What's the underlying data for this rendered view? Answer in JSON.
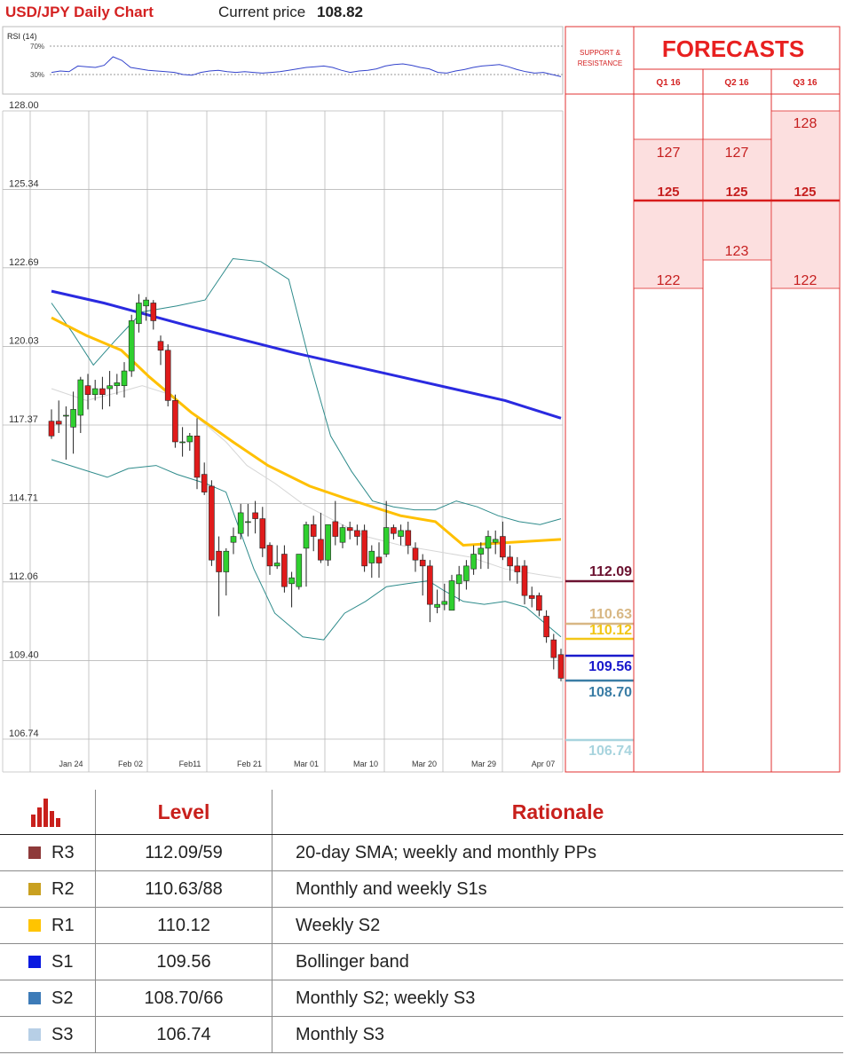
{
  "header": {
    "title": "USD/JPY Daily Chart",
    "price_label": "Current price",
    "price_value": "108.82"
  },
  "rsi": {
    "label": "RSI (14)",
    "levels": [
      "70%",
      "30%"
    ],
    "values": [
      33,
      35,
      34,
      42,
      41,
      40,
      43,
      55,
      50,
      40,
      38,
      36,
      35,
      34,
      33,
      30,
      29,
      33,
      35,
      36,
      34,
      33,
      34,
      33,
      32,
      33,
      34,
      36,
      38,
      40,
      41,
      42,
      40,
      36,
      33,
      35,
      36,
      38,
      42,
      44,
      45,
      43,
      40,
      38,
      33,
      32,
      35,
      37,
      40,
      42,
      43,
      44,
      41,
      37,
      34,
      32,
      33,
      30,
      27
    ]
  },
  "price_axis": {
    "ticks": [
      "128.00",
      "125.34",
      "122.69",
      "120.03",
      "117.37",
      "114.71",
      "112.06",
      "109.40",
      "106.74"
    ]
  },
  "date_axis": {
    "ticks": [
      "Jan 24",
      "Feb 02",
      "Feb11",
      "Feb 21",
      "Mar 01",
      "Mar 10",
      "Mar 20",
      "Mar 29",
      "Apr 07"
    ]
  },
  "chart_data": {
    "type": "candlestick",
    "ylim": [
      106.74,
      128.0
    ],
    "candles": [
      [
        117.5,
        117.9,
        116.9,
        117.0
      ],
      [
        117.5,
        118.2,
        117.1,
        117.4
      ],
      [
        117.7,
        118.0,
        116.2,
        117.7
      ],
      [
        117.3,
        118.5,
        116.4,
        117.9
      ],
      [
        117.7,
        119.0,
        117.1,
        118.9
      ],
      [
        118.7,
        119.1,
        117.9,
        118.4
      ],
      [
        118.4,
        118.9,
        118.2,
        118.6
      ],
      [
        118.6,
        119.0,
        117.9,
        118.4
      ],
      [
        118.6,
        119.2,
        118.0,
        118.7
      ],
      [
        118.7,
        119.1,
        118.4,
        118.8
      ],
      [
        118.7,
        119.5,
        118.3,
        119.2
      ],
      [
        119.2,
        121.1,
        119.0,
        120.9
      ],
      [
        120.8,
        121.8,
        120.5,
        121.5
      ],
      [
        121.4,
        121.7,
        120.9,
        121.6
      ],
      [
        121.5,
        121.6,
        120.6,
        120.9
      ],
      [
        120.2,
        120.4,
        119.4,
        119.9
      ],
      [
        119.9,
        120.1,
        118.0,
        118.2
      ],
      [
        118.2,
        118.4,
        116.6,
        116.8
      ],
      [
        116.8,
        117.3,
        116.3,
        116.8
      ],
      [
        116.8,
        117.1,
        116.5,
        117.0
      ],
      [
        117.0,
        117.6,
        115.2,
        115.6
      ],
      [
        115.7,
        116.1,
        115.0,
        115.1
      ],
      [
        115.3,
        115.5,
        112.6,
        112.8
      ],
      [
        113.1,
        113.6,
        110.9,
        112.4
      ],
      [
        112.4,
        113.2,
        111.6,
        113.1
      ],
      [
        113.4,
        113.9,
        113.0,
        113.6
      ],
      [
        113.7,
        114.7,
        113.5,
        114.4
      ],
      [
        114.1,
        114.7,
        113.6,
        114.1
      ],
      [
        114.4,
        114.8,
        113.7,
        114.2
      ],
      [
        114.2,
        114.6,
        112.9,
        113.2
      ],
      [
        113.3,
        113.4,
        112.3,
        112.6
      ],
      [
        112.6,
        113.3,
        112.5,
        112.7
      ],
      [
        113.0,
        113.3,
        111.7,
        111.9
      ],
      [
        112.0,
        112.4,
        111.2,
        112.2
      ],
      [
        111.9,
        113.0,
        111.8,
        113.0
      ],
      [
        113.2,
        114.1,
        111.9,
        114.0
      ],
      [
        114.0,
        114.3,
        113.1,
        113.6
      ],
      [
        113.5,
        114.4,
        112.7,
        112.8
      ],
      [
        112.8,
        114.0,
        112.6,
        114.0
      ],
      [
        114.1,
        114.8,
        113.3,
        113.6
      ],
      [
        113.4,
        114.0,
        113.2,
        113.9
      ],
      [
        113.9,
        114.1,
        113.5,
        113.8
      ],
      [
        113.8,
        114.0,
        113.3,
        113.6
      ],
      [
        113.8,
        114.0,
        112.4,
        112.6
      ],
      [
        112.7,
        113.3,
        112.2,
        113.1
      ],
      [
        112.9,
        113.4,
        112.2,
        112.7
      ],
      [
        113.0,
        114.8,
        112.9,
        113.9
      ],
      [
        113.9,
        114.0,
        113.5,
        113.7
      ],
      [
        113.6,
        114.0,
        113.3,
        113.8
      ],
      [
        113.8,
        114.1,
        113.0,
        113.3
      ],
      [
        113.2,
        113.4,
        112.4,
        112.8
      ],
      [
        112.8,
        113.0,
        111.6,
        112.6
      ],
      [
        112.6,
        112.8,
        110.7,
        111.3
      ],
      [
        111.2,
        111.8,
        111.0,
        111.3
      ],
      [
        111.3,
        112.0,
        111.1,
        111.4
      ],
      [
        111.1,
        112.3,
        111.1,
        112.1
      ],
      [
        112.0,
        112.6,
        111.4,
        112.3
      ],
      [
        112.1,
        112.8,
        111.8,
        112.6
      ],
      [
        112.5,
        113.3,
        112.3,
        113.0
      ],
      [
        113.0,
        113.4,
        112.5,
        113.2
      ],
      [
        113.2,
        113.8,
        112.5,
        113.6
      ],
      [
        113.4,
        113.8,
        113.0,
        113.5
      ],
      [
        113.6,
        114.1,
        112.8,
        112.9
      ],
      [
        112.9,
        113.3,
        112.1,
        112.6
      ],
      [
        112.6,
        112.9,
        112.0,
        112.4
      ],
      [
        112.6,
        112.8,
        111.3,
        111.6
      ],
      [
        111.6,
        111.9,
        111.2,
        111.5
      ],
      [
        111.6,
        111.7,
        110.9,
        111.1
      ],
      [
        110.9,
        111.1,
        110.0,
        110.2
      ],
      [
        110.1,
        110.3,
        109.1,
        109.5
      ],
      [
        109.6,
        109.8,
        108.7,
        108.8
      ]
    ],
    "sma200": [
      [
        0,
        121.9
      ],
      [
        15,
        121.5
      ],
      [
        40,
        120.7
      ],
      [
        70,
        119.8
      ],
      [
        100,
        119.0
      ],
      [
        130,
        118.2
      ],
      [
        146,
        117.6
      ]
    ],
    "sma50": [
      [
        0,
        121.0
      ],
      [
        10,
        120.4
      ],
      [
        20,
        119.9
      ],
      [
        28,
        119.0
      ],
      [
        40,
        117.8
      ],
      [
        52,
        116.8
      ],
      [
        62,
        116.0
      ],
      [
        74,
        115.3
      ],
      [
        84,
        114.9
      ],
      [
        92,
        114.6
      ],
      [
        100,
        114.3
      ],
      [
        110,
        114.1
      ],
      [
        118,
        113.3
      ],
      [
        146,
        113.5
      ]
    ],
    "bb_upper": [
      [
        0,
        121.5
      ],
      [
        6,
        120.5
      ],
      [
        12,
        119.4
      ],
      [
        18,
        120.2
      ],
      [
        26,
        121.2
      ],
      [
        36,
        121.4
      ],
      [
        44,
        121.6
      ],
      [
        52,
        123.0
      ],
      [
        60,
        122.9
      ],
      [
        68,
        122.3
      ],
      [
        74,
        119.5
      ],
      [
        80,
        117.0
      ],
      [
        86,
        115.8
      ],
      [
        92,
        114.8
      ],
      [
        98,
        114.6
      ],
      [
        104,
        114.5
      ],
      [
        110,
        114.5
      ],
      [
        116,
        114.8
      ],
      [
        122,
        114.6
      ],
      [
        128,
        114.3
      ],
      [
        134,
        114.1
      ],
      [
        140,
        114.0
      ],
      [
        146,
        114.2
      ]
    ],
    "bb_lower": [
      [
        0,
        116.2
      ],
      [
        8,
        115.9
      ],
      [
        16,
        115.6
      ],
      [
        22,
        115.9
      ],
      [
        30,
        116.0
      ],
      [
        36,
        115.7
      ],
      [
        44,
        115.4
      ],
      [
        50,
        115.1
      ],
      [
        58,
        112.5
      ],
      [
        64,
        111.0
      ],
      [
        72,
        110.2
      ],
      [
        78,
        110.1
      ],
      [
        84,
        111.0
      ],
      [
        90,
        111.4
      ],
      [
        96,
        111.9
      ],
      [
        102,
        112.0
      ],
      [
        108,
        112.1
      ],
      [
        112,
        111.8
      ],
      [
        118,
        111.4
      ],
      [
        124,
        111.3
      ],
      [
        130,
        111.4
      ],
      [
        136,
        111.2
      ],
      [
        142,
        110.6
      ],
      [
        146,
        110.2
      ]
    ],
    "bb_mid": [
      [
        0,
        118.6
      ],
      [
        10,
        118.2
      ],
      [
        20,
        118.5
      ],
      [
        26,
        118.7
      ],
      [
        34,
        118.4
      ],
      [
        42,
        117.6
      ],
      [
        50,
        116.8
      ],
      [
        56,
        116.0
      ],
      [
        64,
        115.4
      ],
      [
        72,
        114.7
      ],
      [
        80,
        114.2
      ],
      [
        90,
        113.6
      ],
      [
        100,
        113.3
      ],
      [
        110,
        113.1
      ],
      [
        120,
        112.9
      ],
      [
        130,
        112.5
      ],
      [
        140,
        112.3
      ],
      [
        146,
        112.2
      ]
    ]
  },
  "sr_panel": {
    "title": "SUPPORT & RESISTANCE",
    "levels": [
      {
        "value": "112.09",
        "color": "#6b1230"
      },
      {
        "value": "110.63",
        "color": "#d8b784"
      },
      {
        "value": "110.12",
        "color": "#f2c618"
      },
      {
        "value": "109.56",
        "color": "#1a1acc"
      },
      {
        "value": "108.70",
        "color": "#3a7da5"
      },
      {
        "value": "106.74",
        "color": "#a8d4de"
      }
    ]
  },
  "forecasts": {
    "title": "FORECASTS",
    "columns": [
      {
        "label": "Q1 16",
        "high": "127",
        "mid": "125",
        "low": "122"
      },
      {
        "label": "Q2 16",
        "high": "127",
        "mid": "125",
        "low": "123"
      },
      {
        "label": "Q3 16",
        "high": "128",
        "mid": "125",
        "low": "122"
      }
    ]
  },
  "levels_table": {
    "headers": {
      "level": "Level",
      "rationale": "Rationale"
    },
    "rows": [
      {
        "name": "R3",
        "level": "112.09/59",
        "rationale": "20-day SMA; weekly and monthly PPs",
        "color": "#8e3a3a"
      },
      {
        "name": "R2",
        "level": "110.63/88",
        "rationale": "Monthly and weekly S1s",
        "color": "#c9a020"
      },
      {
        "name": "R1",
        "level": "110.12",
        "rationale": "Weekly S2",
        "color": "#ffc400"
      },
      {
        "name": "S1",
        "level": "109.56",
        "rationale": "Bollinger band",
        "color": "#0a1ae0"
      },
      {
        "name": "S2",
        "level": "108.70/66",
        "rationale": "Monthly S2; weekly S3",
        "color": "#3d7bb8"
      },
      {
        "name": "S3",
        "level": "106.74",
        "rationale": "Monthly S3",
        "color": "#b7cfe6"
      }
    ]
  },
  "colors": {
    "accent": "#d42222",
    "up": "#2fd02f",
    "down": "#e01b1b",
    "sma200": "#2a2ae0",
    "sma50": "#ffc000",
    "bollinger": "#2e8b8b"
  }
}
